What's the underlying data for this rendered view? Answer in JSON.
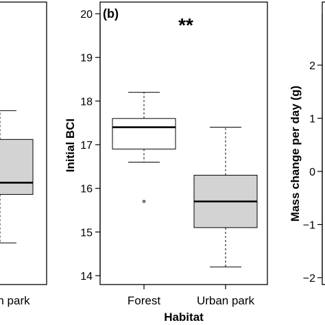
{
  "chart_data": [
    {
      "panel": "a",
      "type": "box",
      "visible_fragment": "left panel, partially cropped",
      "categories": [
        "n park"
      ],
      "boxes": [
        {
          "category": "n park",
          "q1": 0.31,
          "median": 0.355,
          "q3": 0.52,
          "whisker_low": 0.125,
          "whisker_high": 0.63,
          "fill": "#d3d3d3"
        }
      ]
    },
    {
      "panel": "b",
      "panel_label": "(b)",
      "type": "box",
      "significance": "**",
      "xlabel": "Habitat",
      "ylabel": "Initial BCI",
      "ylim": [
        13.85,
        20.25
      ],
      "yticks": [
        14,
        15,
        16,
        17,
        18,
        19,
        20
      ],
      "categories": [
        "Forest",
        "Urban park"
      ],
      "boxes": [
        {
          "category": "Forest",
          "whisker_low": 16.6,
          "q1": 16.9,
          "median": 17.4,
          "q3": 17.6,
          "whisker_high": 18.2,
          "outliers": [
            15.7
          ],
          "fill": "#ffffff"
        },
        {
          "category": "Urban park",
          "whisker_low": 14.2,
          "q1": 15.1,
          "median": 15.7,
          "q3": 16.3,
          "whisker_high": 17.4,
          "outliers": [],
          "fill": "#d3d3d3"
        }
      ]
    },
    {
      "panel": "c",
      "type": "box",
      "visible_fragment": "right panel, y-axis only",
      "ylabel": "Mass change per day (g)",
      "yticks": [
        -2,
        -1,
        0,
        1,
        2
      ],
      "ytick_labels": [
        "−2",
        "−1",
        "0",
        "1",
        "2"
      ],
      "ylim": [
        -2.4,
        2.4
      ]
    }
  ]
}
